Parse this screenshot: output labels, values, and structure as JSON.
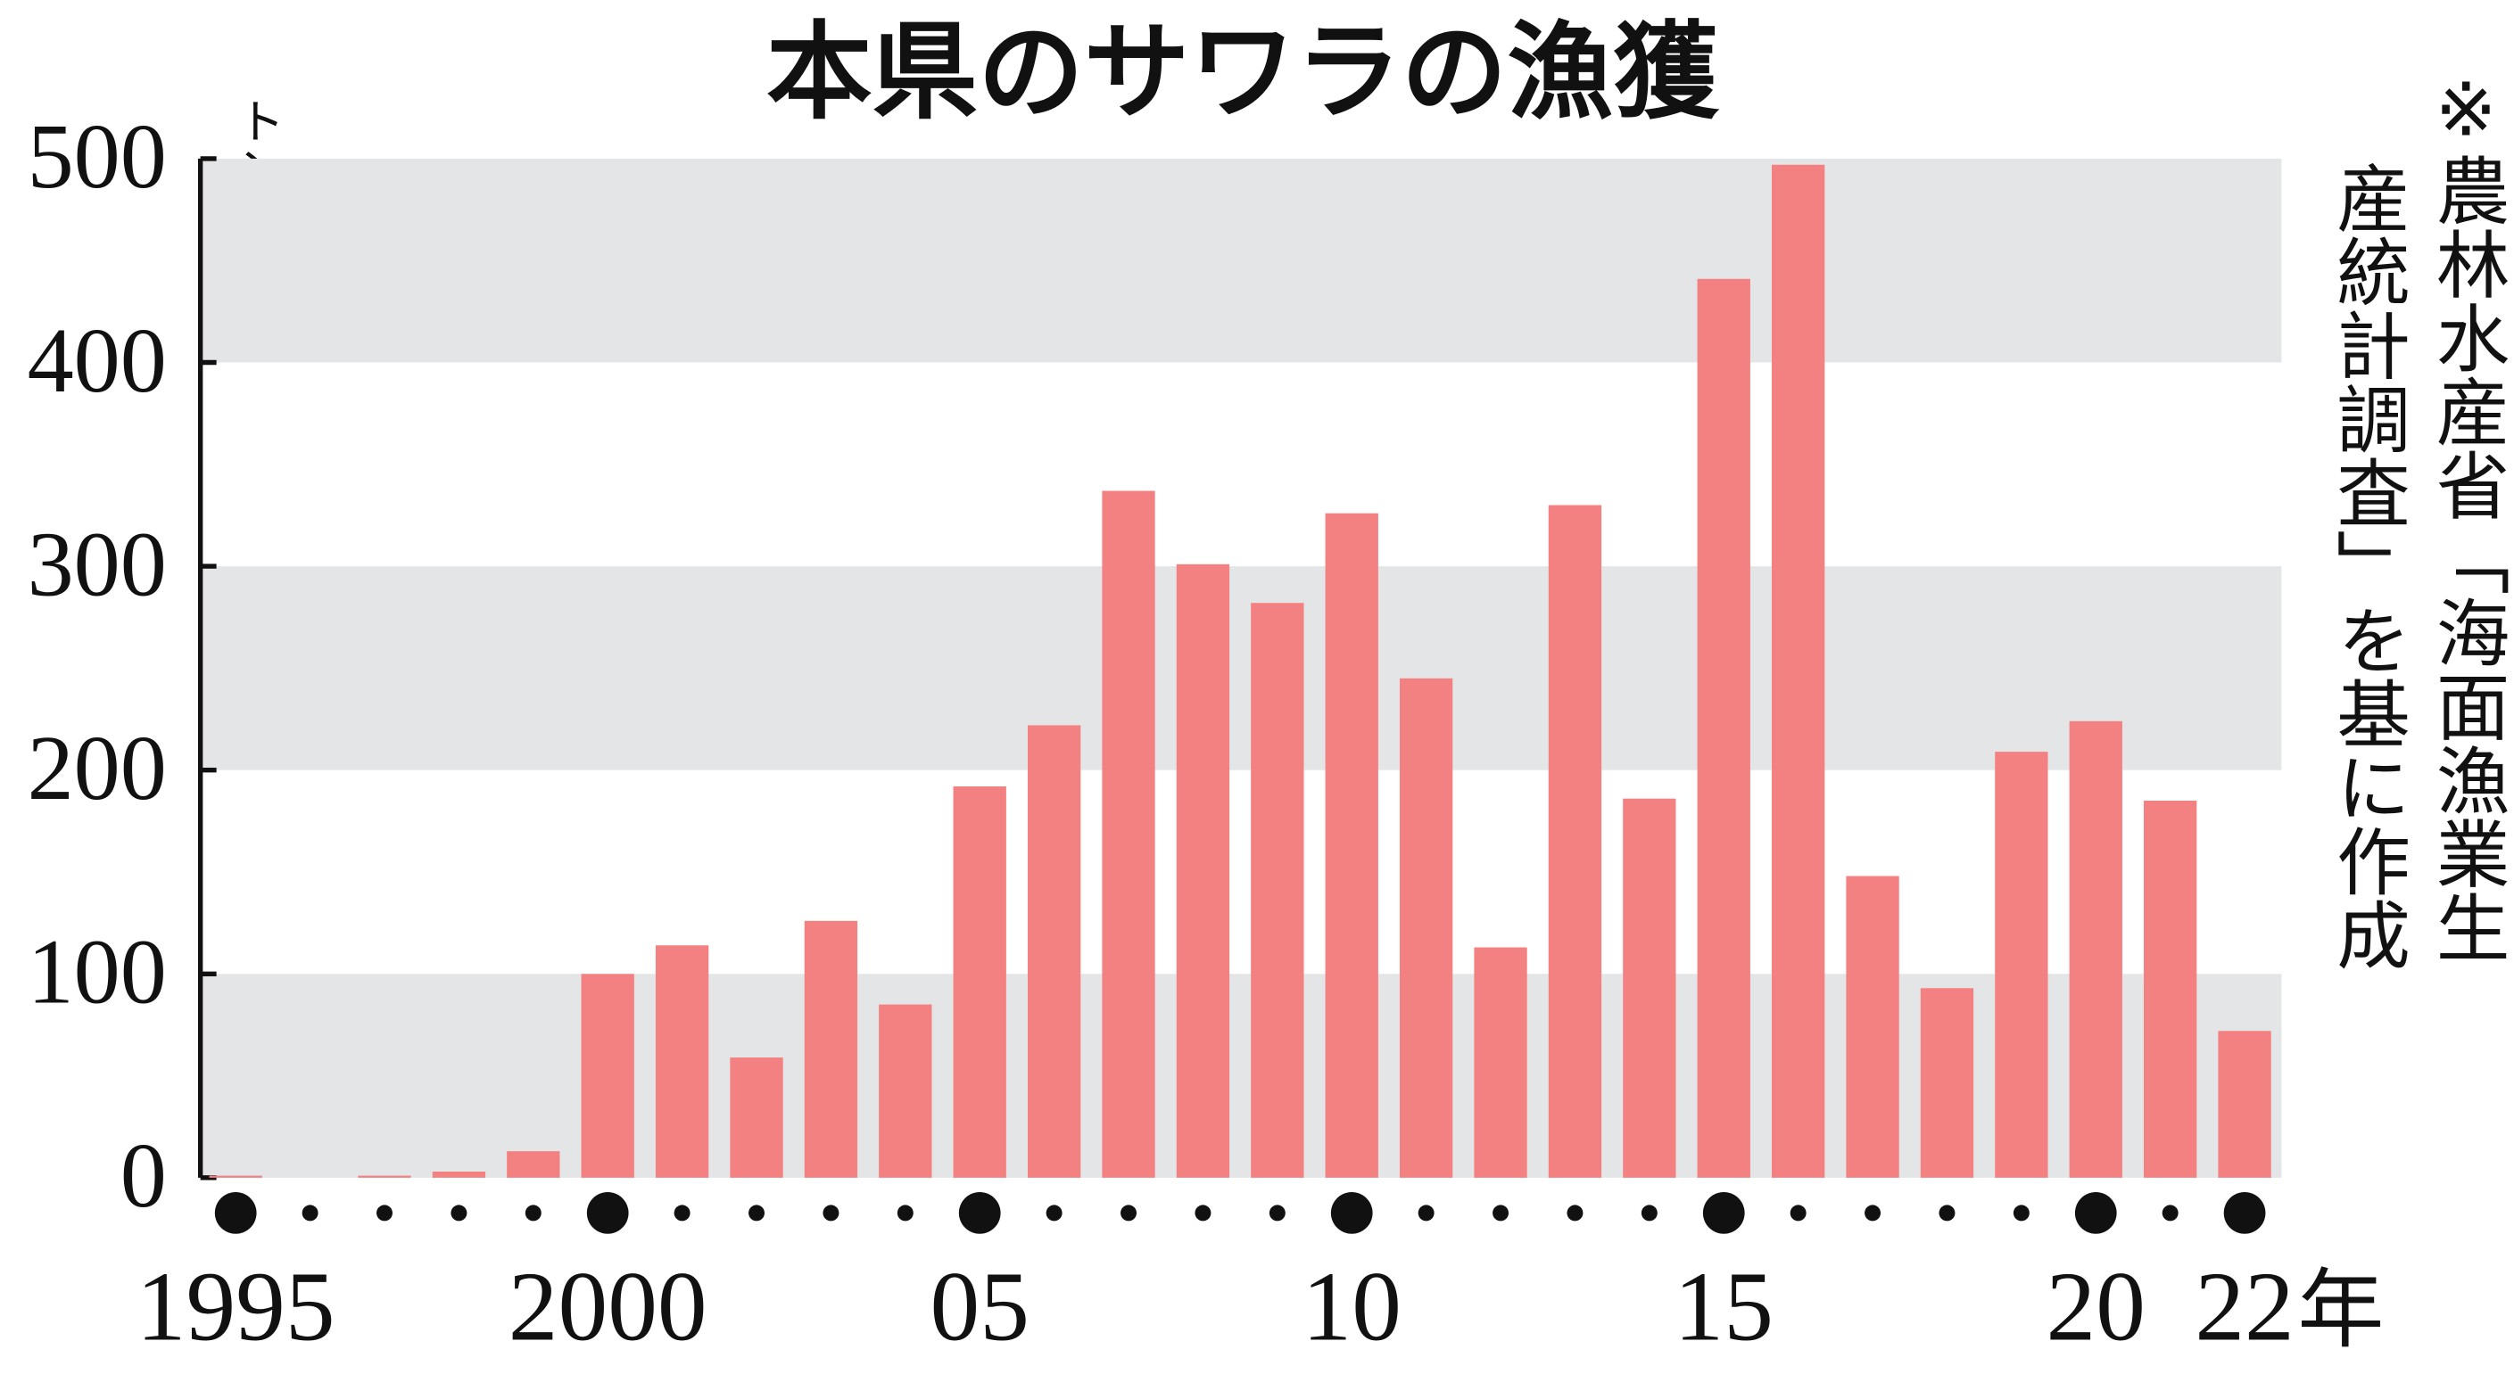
{
  "chart_data": {
    "type": "bar",
    "title": "本県のサワラの漁獲",
    "y_unit": "トン",
    "x_unit": "年",
    "note": [
      "※農林水産省「海面漁業生",
      "産統計調査」を基に作成"
    ],
    "categories": [
      "1995",
      null,
      null,
      null,
      null,
      "2000",
      null,
      null,
      null,
      null,
      "05",
      null,
      null,
      null,
      null,
      "10",
      null,
      null,
      null,
      null,
      "15",
      null,
      null,
      null,
      null,
      "20",
      null,
      "22"
    ],
    "values": [
      1,
      0,
      1,
      3,
      13,
      100,
      114,
      59,
      126,
      85,
      192,
      222,
      337,
      301,
      282,
      326,
      245,
      113,
      330,
      186,
      441,
      497,
      148,
      93,
      209,
      224,
      185,
      72
    ],
    "color": "#f38181",
    "ylim": [
      0,
      500
    ],
    "yticks": [
      0,
      100,
      200,
      300,
      400,
      500
    ]
  }
}
